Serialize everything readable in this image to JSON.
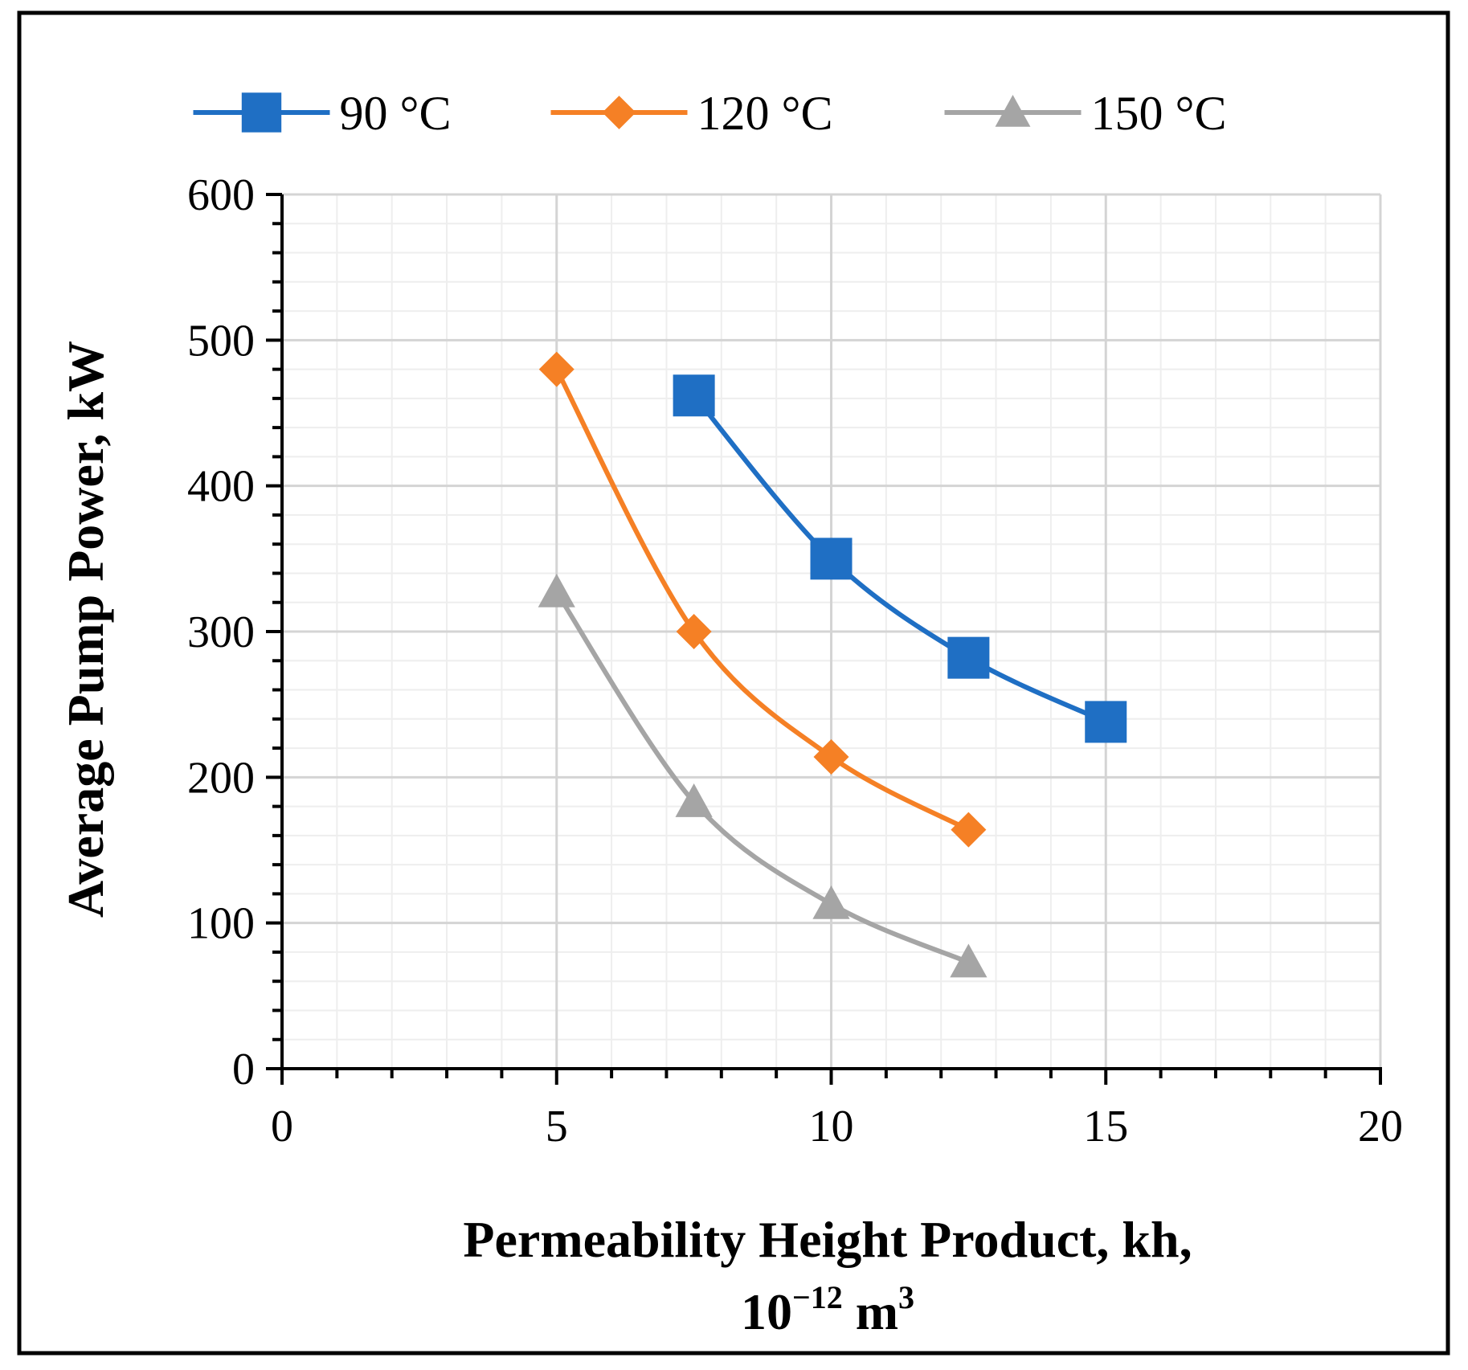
{
  "chart_data": {
    "type": "line",
    "title": "",
    "xlabel": "Permeability Height Product, kh,",
    "xlabel_line2_base": "10",
    "xlabel_line2_exp": "−12",
    "xlabel_line2_unit": " m",
    "xlabel_line2_unit_exp": "3",
    "ylabel": "Average Pump Power, kW",
    "xlim": [
      0,
      20
    ],
    "ylim": [
      0,
      600
    ],
    "x_ticks": [
      0,
      5,
      10,
      15,
      20
    ],
    "y_ticks": [
      0,
      100,
      200,
      300,
      400,
      500,
      600
    ],
    "x_minor_step": 1,
    "y_minor_step": 20,
    "grid": true,
    "legend_position": "top",
    "series": [
      {
        "name": "90 °C",
        "color": "#1f6fc4",
        "marker": "square",
        "x": [
          7.5,
          10,
          12.5,
          15
        ],
        "y": [
          462,
          350,
          282,
          238
        ]
      },
      {
        "name": "120 °C",
        "color": "#f58025",
        "marker": "diamond",
        "x": [
          5,
          7.5,
          10,
          12.5
        ],
        "y": [
          480,
          300,
          214,
          164
        ]
      },
      {
        "name": "150 °C",
        "color": "#a5a5a5",
        "marker": "triangle",
        "x": [
          5,
          7.5,
          10,
          12.5
        ],
        "y": [
          327,
          183,
          113,
          73
        ]
      }
    ]
  }
}
